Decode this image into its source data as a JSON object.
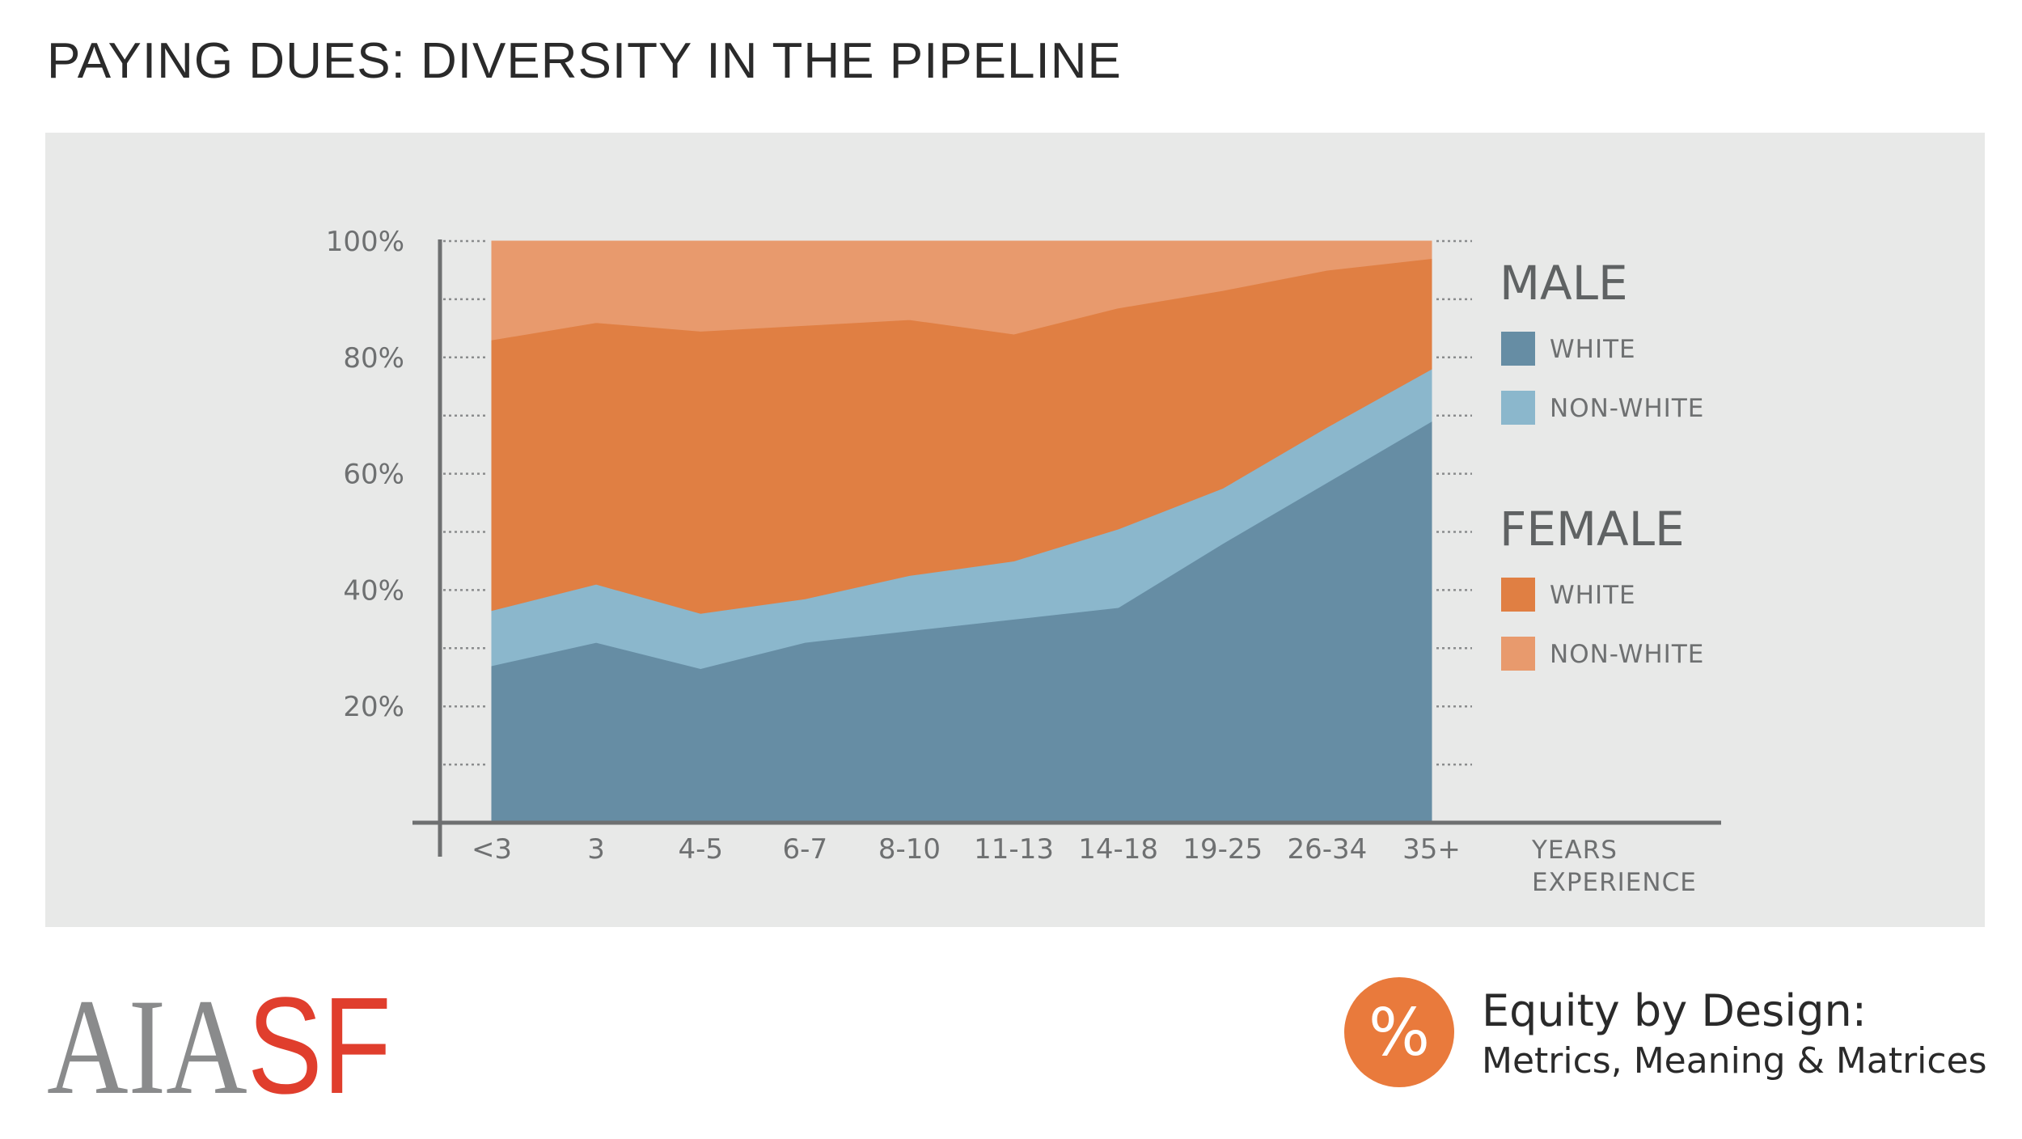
{
  "title": "PAYING DUES: DIVERSITY IN THE PIPELINE",
  "chart_data": {
    "type": "area",
    "stacked": true,
    "categories": [
      "<3",
      "3",
      "4-5",
      "6-7",
      "8-10",
      "11-13",
      "14-18",
      "19-25",
      "26-34",
      "35+"
    ],
    "series": [
      {
        "group": "MALE",
        "name": "WHITE",
        "color": "#668da4",
        "values": [
          27,
          31,
          26.5,
          31,
          33,
          35,
          37,
          48,
          58.5,
          69
        ]
      },
      {
        "group": "MALE",
        "name": "NON-WHITE",
        "color": "#8bb7cc",
        "values": [
          9.5,
          10,
          9.5,
          7.5,
          9.5,
          10,
          13.5,
          9.5,
          9.5,
          9
        ]
      },
      {
        "group": "FEMALE",
        "name": "WHITE",
        "color": "#e07f43",
        "values": [
          46.5,
          45,
          48.5,
          47,
          44,
          39,
          38,
          34,
          27,
          19
        ]
      },
      {
        "group": "FEMALE",
        "name": "NON-WHITE",
        "color": "#e89a6d",
        "values": [
          17,
          14,
          15.5,
          14.5,
          13.5,
          16,
          11.5,
          8.5,
          5,
          3
        ]
      }
    ],
    "y_ticks": [
      "20%",
      "40%",
      "60%",
      "80%",
      "100%"
    ],
    "ylim": [
      0,
      100
    ],
    "xlabel": [
      "YEARS",
      "EXPERIENCE"
    ],
    "legend": {
      "position": "right",
      "groups": [
        {
          "label": "MALE",
          "items": [
            "WHITE",
            "NON-WHITE"
          ]
        },
        {
          "label": "FEMALE",
          "items": [
            "WHITE",
            "NON-WHITE"
          ]
        }
      ]
    }
  },
  "footer": {
    "logo_left": "AIA",
    "logo_right": "SF",
    "badge_symbol": "%",
    "equity_title": "Equity by Design:",
    "equity_subtitle": "Metrics, Meaning & Matrices"
  },
  "colors": {
    "panel_background": "#e8e9e8",
    "axis": "#6e7071",
    "logo_gray": "#8a8b8c",
    "logo_red": "#e03e2d",
    "badge_orange": "#e97a3c"
  }
}
